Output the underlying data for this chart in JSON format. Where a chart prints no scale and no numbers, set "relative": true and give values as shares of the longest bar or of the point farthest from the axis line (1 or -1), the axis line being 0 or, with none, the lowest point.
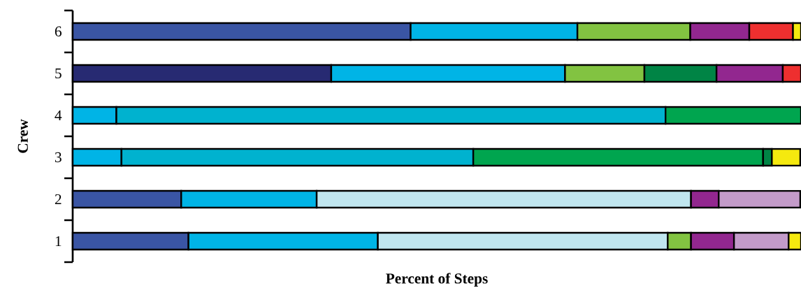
{
  "chart_data": {
    "type": "bar",
    "orientation": "horizontal",
    "stacked": true,
    "relative": true,
    "xlabel": "Percent of Steps",
    "ylabel": "Crew",
    "categories": [
      "6",
      "5",
      "4",
      "3",
      "2",
      "1"
    ],
    "series": [
      {
        "color": "#3a55a4",
        "values": [
          0.464,
          null,
          null,
          null,
          0.149,
          0.159
        ]
      },
      {
        "color": "#272a72",
        "values": [
          null,
          0.355,
          null,
          null,
          null,
          null
        ]
      },
      {
        "color": "#00b4e6",
        "values": [
          0.229,
          0.321,
          0.06,
          0.067,
          0.186,
          0.26
        ]
      },
      {
        "color": "#00b2cf",
        "values": [
          null,
          null,
          0.754,
          0.483,
          null,
          null
        ]
      },
      {
        "color": "#c0e6ef",
        "values": [
          null,
          null,
          null,
          null,
          0.514,
          0.398
        ]
      },
      {
        "color": "#82c341",
        "values": [
          0.155,
          0.109,
          null,
          null,
          null,
          0.032
        ]
      },
      {
        "color": "#00a54f",
        "values": [
          null,
          null,
          0.186,
          0.398,
          null,
          null
        ]
      },
      {
        "color": "#008445",
        "values": [
          null,
          0.099,
          null,
          0.012,
          null,
          null
        ]
      },
      {
        "color": "#92278f",
        "values": [
          0.081,
          0.091,
          null,
          null,
          0.038,
          0.059
        ]
      },
      {
        "color": "#c39bc9",
        "values": [
          null,
          null,
          null,
          null,
          0.112,
          0.075
        ]
      },
      {
        "color": "#ee2f2f",
        "values": [
          0.06,
          0.025,
          null,
          null,
          null,
          null
        ]
      },
      {
        "color": "#f5e90f",
        "values": [
          0.011,
          null,
          null,
          0.039,
          null,
          0.017
        ]
      }
    ]
  }
}
